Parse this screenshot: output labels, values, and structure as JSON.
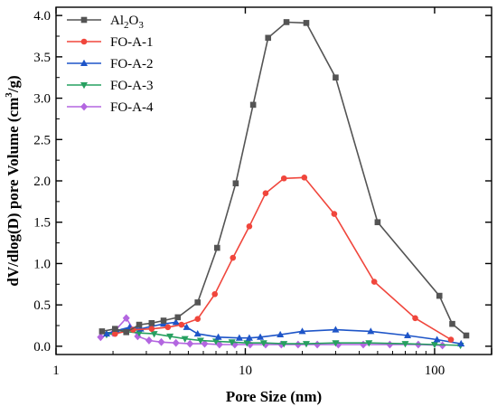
{
  "chart_data": {
    "type": "line",
    "xlabel": "Pore Size (nm)",
    "ylabel_parts": {
      "before": "dV/dlog(D) pore Volume (cm",
      "sup": "3",
      "after": "/g)"
    },
    "x_scale": "log",
    "xlim": [
      1,
      200
    ],
    "ylim": [
      -0.1,
      4.1
    ],
    "x_ticks": [
      {
        "value": 1,
        "label": "1"
      },
      {
        "value": 10,
        "label": "10"
      },
      {
        "value": 100,
        "label": "100"
      }
    ],
    "y_ticks": [
      {
        "value": 0.0,
        "label": "0.0"
      },
      {
        "value": 0.5,
        "label": "0.5"
      },
      {
        "value": 1.0,
        "label": "1.0"
      },
      {
        "value": 1.5,
        "label": "1.5"
      },
      {
        "value": 2.0,
        "label": "2.0"
      },
      {
        "value": 2.5,
        "label": "2.5"
      },
      {
        "value": 3.0,
        "label": "3.0"
      },
      {
        "value": 3.5,
        "label": "3.5"
      },
      {
        "value": 4.0,
        "label": "4.0"
      }
    ],
    "legend_position": "top-left",
    "series": [
      {
        "name": "Al2O3",
        "name_parts": [
          {
            "t": "Al",
            "sub": false
          },
          {
            "t": "2",
            "sub": true
          },
          {
            "t": "O",
            "sub": false
          },
          {
            "t": "3",
            "sub": true
          }
        ],
        "color": "#545454",
        "marker": "square",
        "x": [
          1.75,
          2.05,
          2.35,
          2.75,
          3.2,
          3.7,
          4.4,
          5.6,
          7.1,
          8.9,
          11.0,
          13.2,
          16.5,
          21.0,
          30.0,
          50.0,
          106,
          124,
          147
        ],
        "y": [
          0.18,
          0.21,
          0.17,
          0.26,
          0.28,
          0.31,
          0.35,
          0.53,
          1.19,
          1.97,
          2.92,
          3.73,
          3.92,
          3.91,
          3.25,
          1.5,
          0.61,
          0.27,
          0.13
        ]
      },
      {
        "name": "FO-A-1",
        "name_parts": [
          {
            "t": "FO-A-1",
            "sub": false
          }
        ],
        "color": "#f0463c",
        "marker": "circle",
        "x": [
          2.05,
          2.55,
          3.2,
          3.9,
          4.6,
          5.6,
          6.9,
          8.6,
          10.5,
          12.8,
          16.0,
          20.5,
          29.5,
          48.0,
          79.0,
          122
        ],
        "y": [
          0.15,
          0.2,
          0.21,
          0.23,
          0.26,
          0.33,
          0.63,
          1.07,
          1.45,
          1.85,
          2.03,
          2.04,
          1.6,
          0.78,
          0.34,
          0.08
        ]
      },
      {
        "name": "FO-A-2",
        "name_parts": [
          {
            "t": "FO-A-2",
            "sub": false
          }
        ],
        "color": "#1e55c8",
        "marker": "triangle-up",
        "x": [
          1.85,
          2.1,
          2.45,
          2.8,
          3.2,
          3.7,
          4.3,
          4.9,
          5.6,
          7.2,
          9.3,
          10.5,
          12.0,
          15.3,
          20.0,
          30.0,
          46.0,
          72.0,
          103,
          138
        ],
        "y": [
          0.15,
          0.19,
          0.23,
          0.21,
          0.24,
          0.27,
          0.29,
          0.23,
          0.15,
          0.11,
          0.1,
          0.1,
          0.11,
          0.14,
          0.18,
          0.2,
          0.18,
          0.13,
          0.08,
          0.03
        ]
      },
      {
        "name": "FO-A-3",
        "name_parts": [
          {
            "t": "FO-A-3",
            "sub": false
          }
        ],
        "color": "#27a060",
        "marker": "triangle-down",
        "x": [
          1.85,
          2.3,
          2.75,
          3.3,
          4.0,
          4.8,
          5.8,
          7.0,
          8.5,
          10.2,
          12.5,
          16.0,
          21.0,
          30.0,
          45.0,
          70.0,
          100,
          137
        ],
        "y": [
          0.14,
          0.18,
          0.16,
          0.15,
          0.12,
          0.09,
          0.07,
          0.06,
          0.05,
          0.04,
          0.04,
          0.03,
          0.03,
          0.04,
          0.04,
          0.03,
          0.02,
          0.01
        ]
      },
      {
        "name": "FO-A-4",
        "name_parts": [
          {
            "t": "FO-A-4",
            "sub": false
          }
        ],
        "color": "#b366e0",
        "marker": "diamond",
        "x": [
          1.72,
          2.0,
          2.35,
          2.7,
          3.1,
          3.6,
          4.3,
          5.1,
          6.1,
          7.3,
          8.8,
          10.6,
          12.8,
          15.5,
          19.0,
          24.0,
          31.0,
          42.0,
          58.0,
          82.0,
          110
        ],
        "y": [
          0.11,
          0.16,
          0.34,
          0.12,
          0.07,
          0.05,
          0.04,
          0.03,
          0.03,
          0.02,
          0.02,
          0.02,
          0.02,
          0.02,
          0.02,
          0.02,
          0.02,
          0.02,
          0.02,
          0.02,
          0.01
        ]
      }
    ]
  }
}
